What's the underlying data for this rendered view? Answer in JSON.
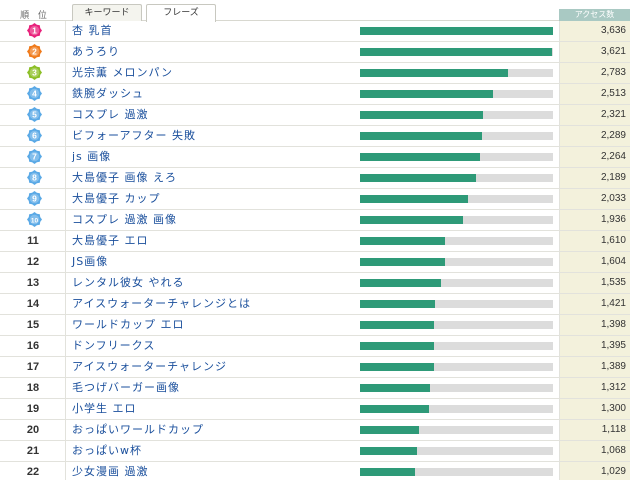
{
  "header": {
    "rank_label": "順 位",
    "tabs": [
      {
        "label": "キーワード",
        "active": false
      },
      {
        "label": "フレーズ",
        "active": true
      }
    ],
    "access_label": "アクセス数"
  },
  "colors": {
    "bar_fill": "#2e9a78",
    "bar_track": "#dcdcdc",
    "term_text": "#1a4f9c",
    "count_bg": "#f3f1dc",
    "badge_1": "#e8207a",
    "badge_2": "#f07a1a",
    "badge_3": "#8cbf26",
    "badge_blue": "#5aa9e6"
  },
  "max_count": 3636,
  "rows": [
    {
      "rank": "1",
      "term": "杏 乳首",
      "count": "3,636",
      "value": 3636,
      "badge": "badge_1"
    },
    {
      "rank": "2",
      "term": "あうろり",
      "count": "3,621",
      "value": 3621,
      "badge": "badge_2"
    },
    {
      "rank": "3",
      "term": "光宗薫 メロンパン",
      "count": "2,783",
      "value": 2783,
      "badge": "badge_3"
    },
    {
      "rank": "4",
      "term": "鉄腕ダッシュ",
      "count": "2,513",
      "value": 2513,
      "badge": "badge_blue"
    },
    {
      "rank": "5",
      "term": "コスプレ 過激",
      "count": "2,321",
      "value": 2321,
      "badge": "badge_blue"
    },
    {
      "rank": "6",
      "term": "ビフォーアフター 失敗",
      "count": "2,289",
      "value": 2289,
      "badge": "badge_blue"
    },
    {
      "rank": "7",
      "term": "js 画像",
      "count": "2,264",
      "value": 2264,
      "badge": "badge_blue"
    },
    {
      "rank": "8",
      "term": "大島優子 画像 えろ",
      "count": "2,189",
      "value": 2189,
      "badge": "badge_blue"
    },
    {
      "rank": "9",
      "term": "大島優子 カップ",
      "count": "2,033",
      "value": 2033,
      "badge": "badge_blue"
    },
    {
      "rank": "10",
      "term": "コスプレ 過激 画像",
      "count": "1,936",
      "value": 1936,
      "badge": "badge_blue"
    },
    {
      "rank": "11",
      "term": "大島優子 エロ",
      "count": "1,610",
      "value": 1610,
      "badge": null
    },
    {
      "rank": "12",
      "term": "JS画像",
      "count": "1,604",
      "value": 1604,
      "badge": null
    },
    {
      "rank": "13",
      "term": "レンタル彼女 やれる",
      "count": "1,535",
      "value": 1535,
      "badge": null
    },
    {
      "rank": "14",
      "term": "アイスウォーターチャレンジとは",
      "count": "1,421",
      "value": 1421,
      "badge": null
    },
    {
      "rank": "15",
      "term": "ワールドカップ エロ",
      "count": "1,398",
      "value": 1398,
      "badge": null
    },
    {
      "rank": "16",
      "term": "ドンフリークス",
      "count": "1,395",
      "value": 1395,
      "badge": null
    },
    {
      "rank": "17",
      "term": "アイスウォーターチャレンジ",
      "count": "1,389",
      "value": 1389,
      "badge": null
    },
    {
      "rank": "18",
      "term": "毛つげバーガー画像",
      "count": "1,312",
      "value": 1312,
      "badge": null
    },
    {
      "rank": "19",
      "term": "小学生 エロ",
      "count": "1,300",
      "value": 1300,
      "badge": null
    },
    {
      "rank": "20",
      "term": "おっぱいワールドカップ",
      "count": "1,118",
      "value": 1118,
      "badge": null
    },
    {
      "rank": "21",
      "term": "おっぱいw杯",
      "count": "1,068",
      "value": 1068,
      "badge": null
    },
    {
      "rank": "22",
      "term": "少女漫画 過激",
      "count": "1,029",
      "value": 1029,
      "badge": null
    }
  ]
}
